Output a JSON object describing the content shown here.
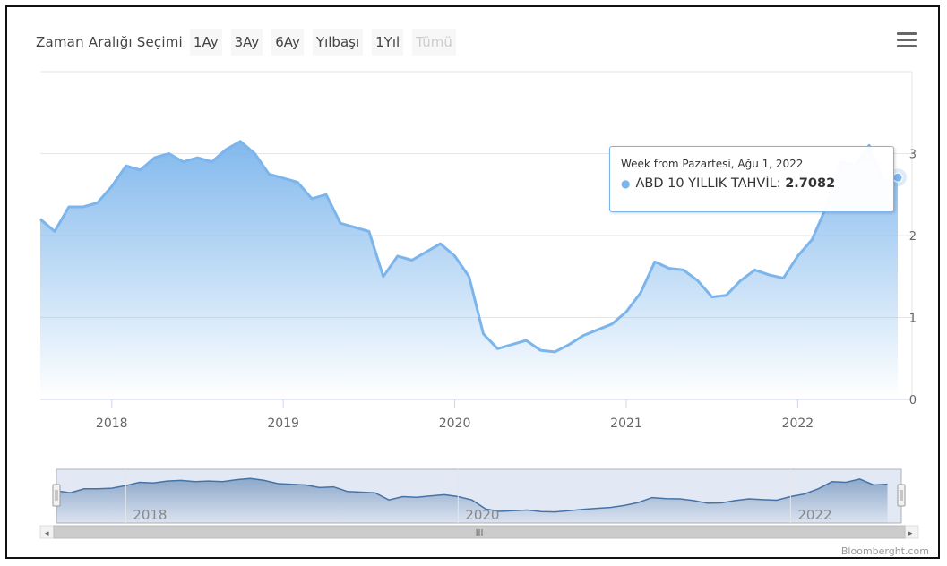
{
  "range_selector": {
    "label": "Zaman Aralığı Seçimi",
    "buttons": [
      {
        "label": "1Ay",
        "enabled": true
      },
      {
        "label": "3Ay",
        "enabled": true
      },
      {
        "label": "6Ay",
        "enabled": true
      },
      {
        "label": "Yılbaşı",
        "enabled": true
      },
      {
        "label": "1Yıl",
        "enabled": true
      },
      {
        "label": "Tümü",
        "enabled": false
      }
    ]
  },
  "menu_icon": "hamburger-menu-icon",
  "tooltip": {
    "header": "Week from Pazartesi, Ağu 1, 2022",
    "series_label": "ABD 10 YILLIK TAHVİL: ",
    "value": "2.7082"
  },
  "credit": "Bloomberght.com",
  "colors": {
    "series": "#7cb5ec",
    "navigator": "#4572a7"
  },
  "chart_data": {
    "type": "area",
    "title": "",
    "xlabel": "",
    "ylabel": "",
    "x_ticks": [
      "2018",
      "2019",
      "2020",
      "2021",
      "2022"
    ],
    "y_ticks": [
      "0",
      "1",
      "2",
      "3"
    ],
    "ylim": [
      0,
      4
    ],
    "grid": true,
    "series": [
      {
        "name": "ABD 10 YILLIK TAHVİL",
        "x": [
          "2017-08",
          "2017-09",
          "2017-10",
          "2017-11",
          "2017-12",
          "2018-01",
          "2018-02",
          "2018-03",
          "2018-04",
          "2018-05",
          "2018-06",
          "2018-07",
          "2018-08",
          "2018-09",
          "2018-10",
          "2018-11",
          "2018-12",
          "2019-01",
          "2019-02",
          "2019-03",
          "2019-04",
          "2019-05",
          "2019-06",
          "2019-07",
          "2019-08",
          "2019-09",
          "2019-10",
          "2019-11",
          "2019-12",
          "2020-01",
          "2020-02",
          "2020-03",
          "2020-04",
          "2020-05",
          "2020-06",
          "2020-07",
          "2020-08",
          "2020-09",
          "2020-10",
          "2020-11",
          "2020-12",
          "2021-01",
          "2021-02",
          "2021-03",
          "2021-04",
          "2021-05",
          "2021-06",
          "2021-07",
          "2021-08",
          "2021-09",
          "2021-10",
          "2021-11",
          "2021-12",
          "2022-01",
          "2022-02",
          "2022-03",
          "2022-04",
          "2022-05",
          "2022-06",
          "2022-07",
          "2022-08"
        ],
        "values": [
          2.2,
          2.05,
          2.35,
          2.35,
          2.4,
          2.6,
          2.85,
          2.8,
          2.95,
          3.0,
          2.9,
          2.95,
          2.9,
          3.05,
          3.15,
          3.0,
          2.75,
          2.7,
          2.65,
          2.45,
          2.5,
          2.15,
          2.1,
          2.05,
          1.5,
          1.75,
          1.7,
          1.8,
          1.9,
          1.75,
          1.5,
          0.8,
          0.62,
          0.67,
          0.72,
          0.6,
          0.58,
          0.67,
          0.78,
          0.85,
          0.92,
          1.07,
          1.3,
          1.68,
          1.6,
          1.58,
          1.45,
          1.25,
          1.27,
          1.45,
          1.58,
          1.52,
          1.48,
          1.75,
          1.95,
          2.35,
          2.9,
          2.85,
          3.1,
          2.65,
          2.7082
        ]
      }
    ],
    "navigator": {
      "x_ticks": [
        "2018",
        "2020",
        "2022"
      ]
    }
  }
}
